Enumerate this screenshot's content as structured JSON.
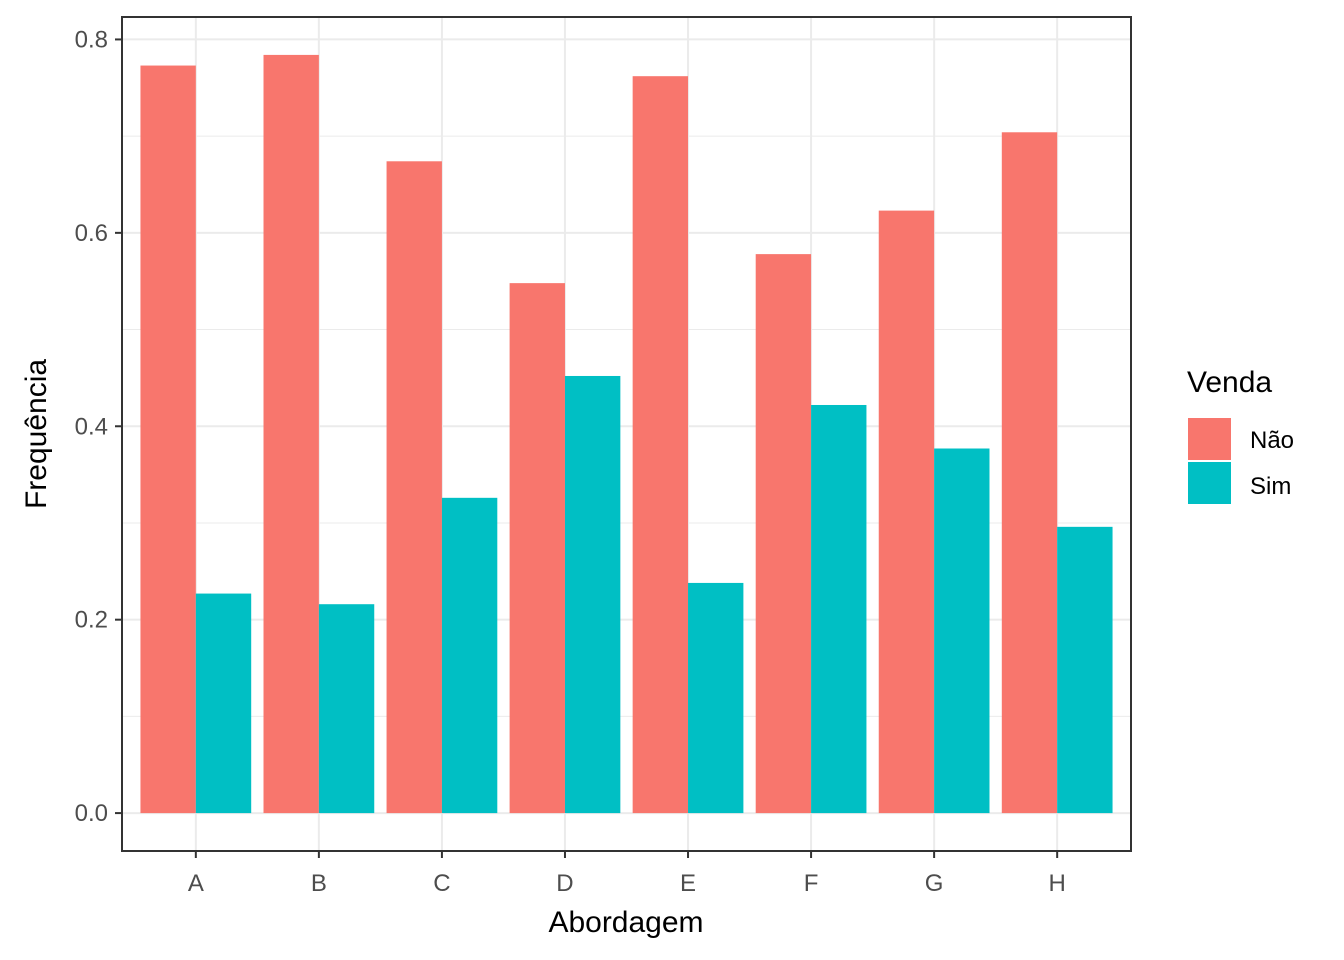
{
  "chart_data": {
    "type": "bar",
    "xlabel": "Abordagem",
    "ylabel": "Frequência",
    "categories": [
      "A",
      "B",
      "C",
      "D",
      "E",
      "F",
      "G",
      "H"
    ],
    "series": [
      {
        "name": "Não",
        "color": "#F8766D",
        "values": [
          0.773,
          0.784,
          0.674,
          0.548,
          0.762,
          0.578,
          0.623,
          0.704
        ]
      },
      {
        "name": "Sim",
        "color": "#00BFC4",
        "values": [
          0.227,
          0.216,
          0.326,
          0.452,
          0.238,
          0.422,
          0.377,
          0.296
        ]
      }
    ],
    "ylim": [
      -0.0392,
      0.8232
    ],
    "yticks": [
      0.0,
      0.2,
      0.4,
      0.6,
      0.8
    ],
    "ytick_labels": [
      "0.0",
      "0.2",
      "0.4",
      "0.6",
      "0.8"
    ],
    "grid": true,
    "legend": {
      "title": "Venda",
      "placement": "right"
    }
  }
}
